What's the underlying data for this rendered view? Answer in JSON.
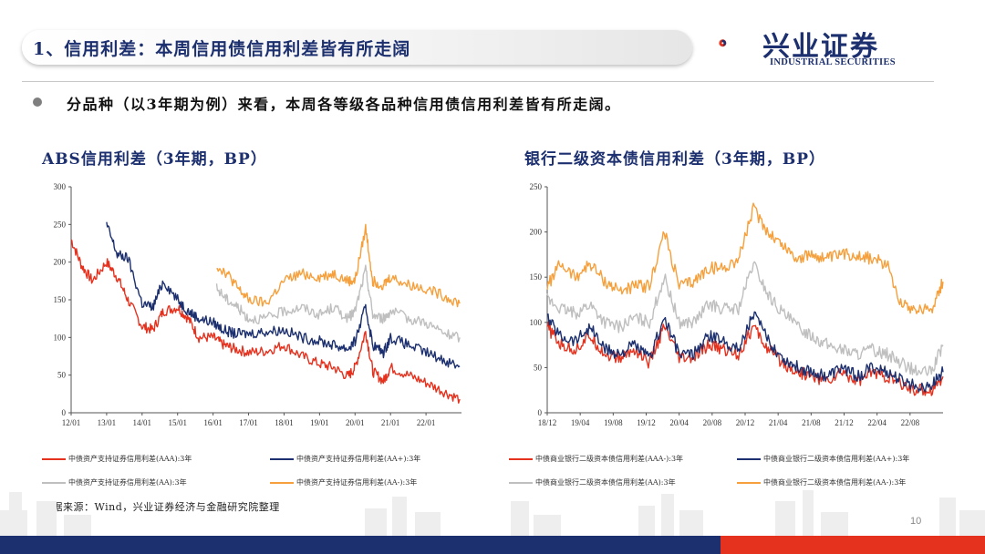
{
  "header": {
    "title": "1、信用利差：本周信用债信用利差皆有所走阔",
    "logo_cn": "兴业证券",
    "logo_en": "INDUSTRIAL SECURITIES"
  },
  "bullet": "分品种（以3年期为例）来看，本周各等级各品种信用债信用利差皆有所走阔。",
  "source": "数据来源：Wind，兴业证券经济与金融研究院整理",
  "page_number": "10",
  "colors": {
    "navy": "#1c2f6e",
    "red": "#e5321f",
    "gray": "#bfbfbf",
    "orange": "#f5a03c"
  },
  "chart_data": [
    {
      "type": "line",
      "title": "ABS信用利差（3年期，BP）",
      "x_ticks": [
        "12/01",
        "13/01",
        "14/01",
        "15/01",
        "16/01",
        "17/01",
        "18/01",
        "19/01",
        "20/01",
        "21/01",
        "22/01"
      ],
      "x_range": [
        2012.0,
        2023.0
      ],
      "ylim": [
        0,
        300
      ],
      "y_ticks": [
        0,
        50,
        100,
        150,
        200,
        250,
        300
      ],
      "legend_position": "bottom",
      "series": [
        {
          "name": "中债资产支持证券信用利差(AAA):3年",
          "color": "#e5321f",
          "x": [
            2012.0,
            2012.3,
            2012.6,
            2013.0,
            2013.3,
            2013.6,
            2014.0,
            2014.3,
            2014.6,
            2015.0,
            2015.3,
            2015.6,
            2016.0,
            2016.3,
            2016.6,
            2017.0,
            2017.5,
            2018.0,
            2018.5,
            2019.0,
            2019.4,
            2019.8,
            2020.0,
            2020.3,
            2020.5,
            2020.8,
            2021.0,
            2021.5,
            2022.0,
            2022.5,
            2022.95
          ],
          "values": [
            230,
            195,
            175,
            200,
            180,
            150,
            115,
            110,
            135,
            140,
            125,
            100,
            100,
            90,
            85,
            80,
            82,
            90,
            75,
            65,
            60,
            48,
            60,
            108,
            55,
            42,
            60,
            50,
            40,
            28,
            18
          ]
        },
        {
          "name": "中债资产支持证券信用利差(AA+):3年",
          "color": "#1c2f6e",
          "x": [
            2013.0,
            2013.3,
            2013.6,
            2014.0,
            2014.3,
            2014.6,
            2015.0,
            2015.3,
            2015.6,
            2016.0,
            2016.3,
            2016.6,
            2017.0,
            2017.5,
            2018.0,
            2018.5,
            2019.0,
            2019.4,
            2019.8,
            2020.0,
            2020.3,
            2020.5,
            2020.8,
            2021.0,
            2021.5,
            2022.0,
            2022.5,
            2022.95
          ],
          "values": [
            250,
            210,
            205,
            145,
            140,
            175,
            150,
            135,
            125,
            120,
            110,
            105,
            105,
            108,
            110,
            100,
            95,
            90,
            85,
            95,
            140,
            90,
            80,
            100,
            90,
            80,
            70,
            62
          ]
        },
        {
          "name": "中债资产支持证券信用利差(AA):3年",
          "color": "#bfbfbf",
          "x": [
            2016.1,
            2016.4,
            2016.7,
            2017.0,
            2017.5,
            2018.0,
            2018.5,
            2019.0,
            2019.4,
            2019.8,
            2020.0,
            2020.3,
            2020.5,
            2020.8,
            2021.0,
            2021.5,
            2022.0,
            2022.5,
            2022.95
          ],
          "values": [
            165,
            150,
            140,
            125,
            125,
            135,
            140,
            130,
            140,
            125,
            135,
            190,
            130,
            125,
            135,
            125,
            120,
            105,
            100
          ]
        },
        {
          "name": "中债资产支持证券信用利差(AA-):3年",
          "color": "#f5a03c",
          "x": [
            2016.1,
            2016.4,
            2016.7,
            2017.0,
            2017.5,
            2018.0,
            2018.5,
            2019.0,
            2019.4,
            2019.8,
            2020.0,
            2020.3,
            2020.5,
            2020.8,
            2021.0,
            2021.5,
            2022.0,
            2022.5,
            2022.95
          ],
          "values": [
            195,
            185,
            165,
            150,
            145,
            175,
            185,
            180,
            185,
            175,
            175,
            245,
            175,
            170,
            180,
            170,
            165,
            155,
            145
          ]
        }
      ]
    },
    {
      "type": "line",
      "title": "银行二级资本债信用利差（3年期，BP）",
      "x_ticks": [
        "18/12",
        "19/04",
        "19/08",
        "19/12",
        "20/04",
        "20/08",
        "20/12",
        "21/04",
        "21/08",
        "21/12",
        "22/04",
        "22/08"
      ],
      "x_range": [
        2018.917,
        2022.917
      ],
      "ylim": [
        0,
        250
      ],
      "y_ticks": [
        0,
        50,
        100,
        150,
        200,
        250
      ],
      "legend_position": "bottom",
      "series": [
        {
          "name": "中债商业银行二级资本债信用利差(AAA-):3年",
          "color": "#e5321f",
          "x": [
            2018.917,
            2019.05,
            2019.2,
            2019.35,
            2019.5,
            2019.65,
            2019.8,
            2019.95,
            2020.1,
            2020.25,
            2020.4,
            2020.55,
            2020.7,
            2020.85,
            2021.0,
            2021.15,
            2021.3,
            2021.45,
            2021.6,
            2021.75,
            2021.9,
            2022.05,
            2022.2,
            2022.35,
            2022.5,
            2022.65,
            2022.8,
            2022.917
          ],
          "values": [
            95,
            75,
            70,
            85,
            65,
            60,
            70,
            55,
            95,
            60,
            60,
            75,
            70,
            65,
            95,
            70,
            55,
            45,
            40,
            35,
            45,
            35,
            45,
            40,
            30,
            25,
            25,
            40
          ]
        },
        {
          "name": "中债商业银行二级资本债信用利差(AA+):3年",
          "color": "#1c2f6e",
          "x": [
            2018.917,
            2019.05,
            2019.2,
            2019.35,
            2019.5,
            2019.65,
            2019.8,
            2019.95,
            2020.1,
            2020.25,
            2020.4,
            2020.55,
            2020.7,
            2020.85,
            2021.0,
            2021.15,
            2021.3,
            2021.45,
            2021.6,
            2021.75,
            2021.9,
            2022.05,
            2022.2,
            2022.35,
            2022.5,
            2022.65,
            2022.8,
            2022.917
          ],
          "values": [
            105,
            85,
            80,
            95,
            70,
            65,
            75,
            60,
            105,
            65,
            65,
            85,
            80,
            70,
            110,
            80,
            60,
            50,
            45,
            40,
            50,
            40,
            50,
            45,
            35,
            30,
            30,
            45
          ]
        },
        {
          "name": "中债商业银行二级资本债信用利差(AA):3年",
          "color": "#bfbfbf",
          "x": [
            2018.917,
            2019.05,
            2019.2,
            2019.35,
            2019.5,
            2019.65,
            2019.8,
            2019.95,
            2020.1,
            2020.25,
            2020.4,
            2020.55,
            2020.7,
            2020.85,
            2021.0,
            2021.15,
            2021.3,
            2021.45,
            2021.6,
            2021.75,
            2021.9,
            2022.05,
            2022.2,
            2022.35,
            2022.5,
            2022.65,
            2022.8,
            2022.917
          ],
          "values": [
            125,
            115,
            110,
            120,
            100,
            95,
            105,
            100,
            150,
            100,
            100,
            120,
            115,
            115,
            165,
            130,
            110,
            95,
            85,
            75,
            70,
            65,
            70,
            65,
            55,
            45,
            45,
            75
          ]
        },
        {
          "name": "中债商业银行二级资本债信用利差(AA-):3年",
          "color": "#f5a03c",
          "x": [
            2018.917,
            2019.05,
            2019.2,
            2019.35,
            2019.5,
            2019.65,
            2019.8,
            2019.95,
            2020.1,
            2020.25,
            2020.4,
            2020.55,
            2020.7,
            2020.85,
            2021.0,
            2021.15,
            2021.3,
            2021.45,
            2021.6,
            2021.75,
            2021.9,
            2022.05,
            2022.2,
            2022.35,
            2022.5,
            2022.65,
            2022.8,
            2022.917
          ],
          "values": [
            140,
            165,
            150,
            165,
            145,
            135,
            140,
            140,
            200,
            140,
            145,
            160,
            160,
            170,
            225,
            200,
            185,
            170,
            175,
            170,
            175,
            175,
            170,
            165,
            120,
            115,
            115,
            145
          ]
        }
      ]
    }
  ]
}
